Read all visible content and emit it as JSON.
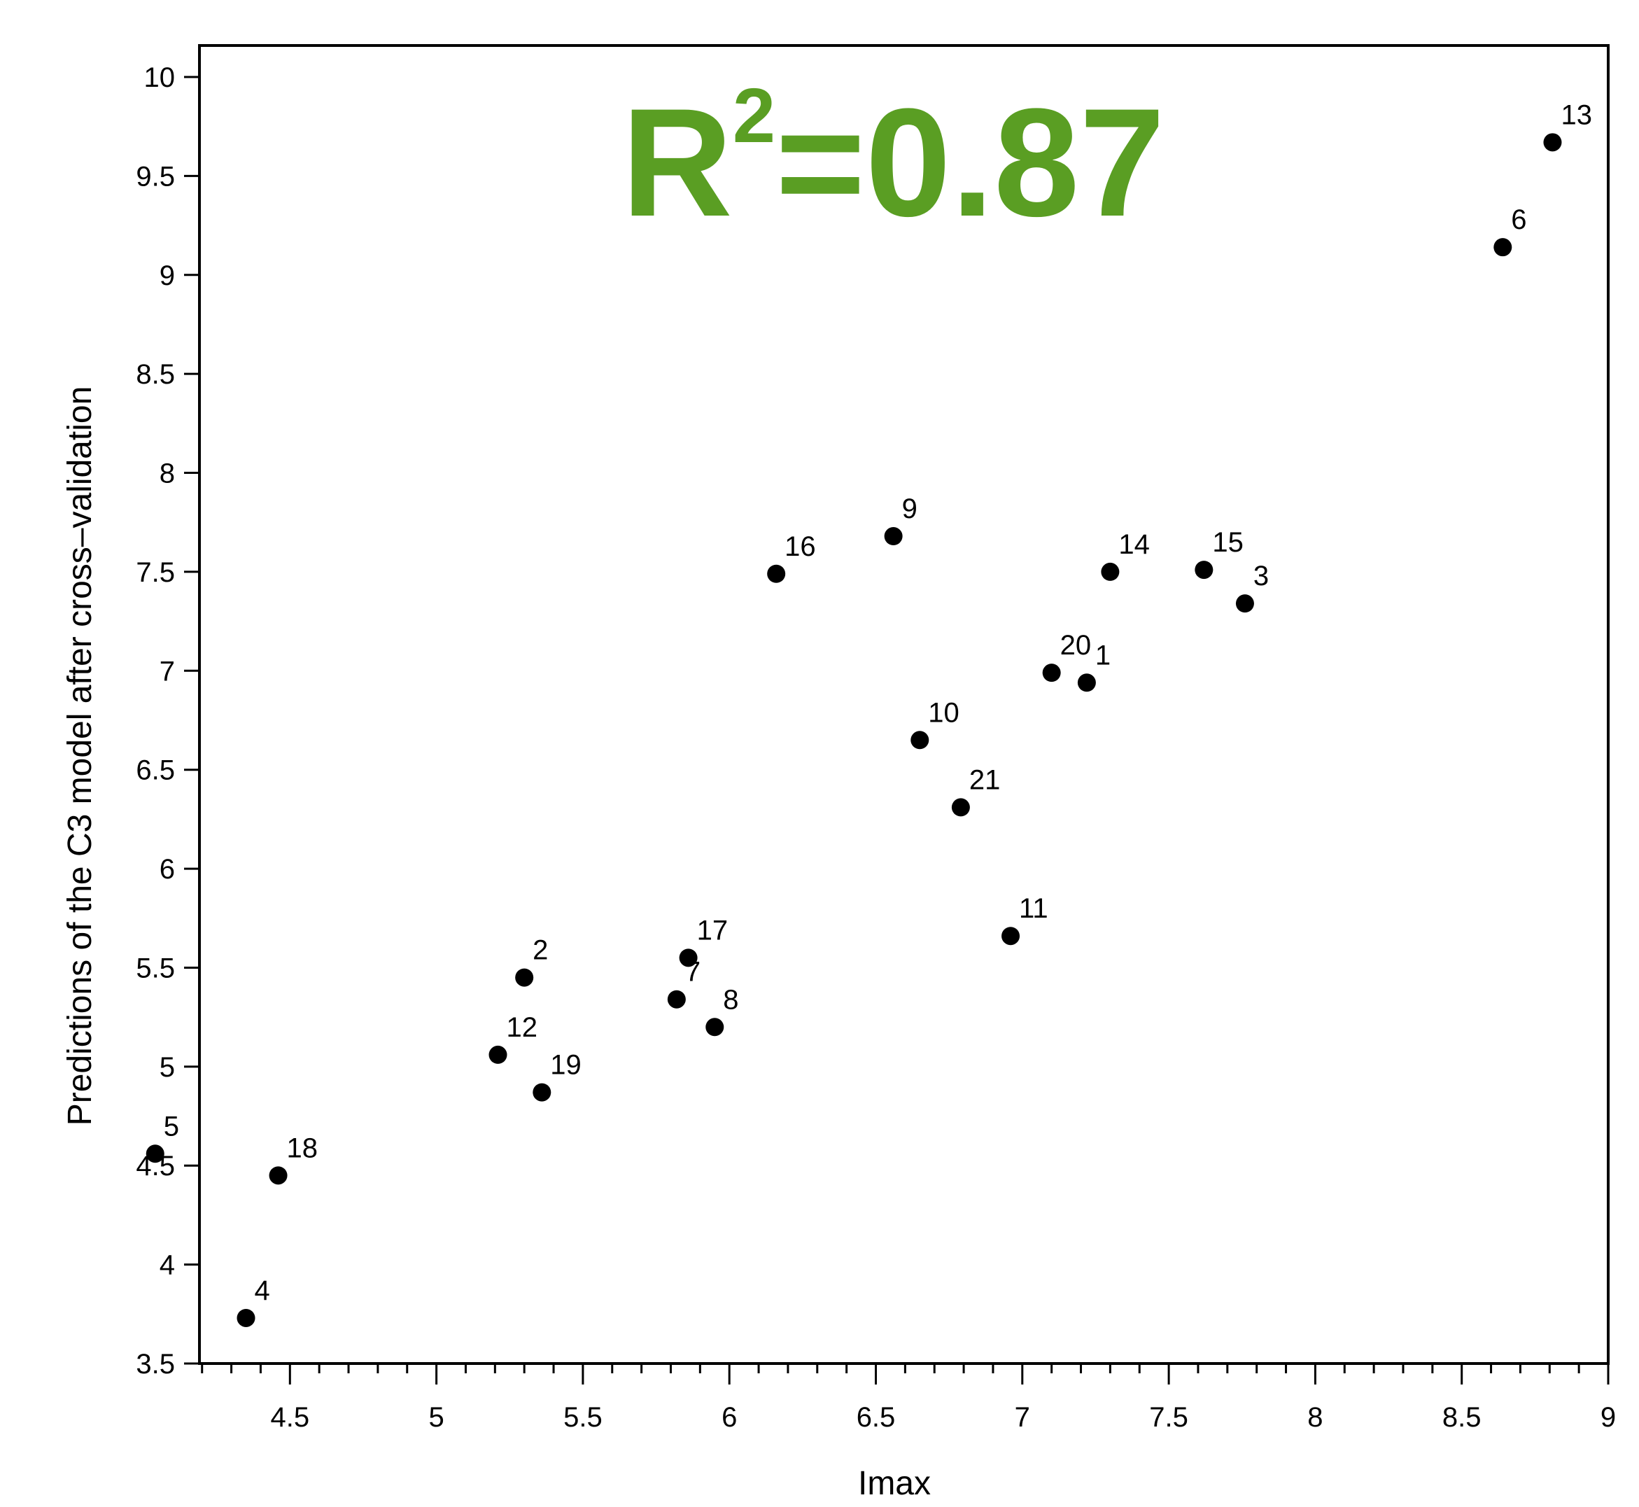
{
  "chart_data": {
    "type": "scatter",
    "xlabel": "Imax",
    "ylabel": "Predictions of the C3 model after cross–validation",
    "xlim": [
      4.0,
      9.0
    ],
    "ylim": [
      3.5,
      10.0
    ],
    "x_ticks": [
      "4.5",
      "5",
      "5.5",
      "6",
      "6.5",
      "7",
      "7.5",
      "8",
      "8.5",
      "9"
    ],
    "y_ticks": [
      "3.5",
      "4",
      "4.5",
      "5",
      "5.5",
      "6",
      "6.5",
      "7",
      "7.5",
      "8",
      "8.5",
      "9",
      "9.5",
      "10"
    ],
    "annotation": {
      "base": "R",
      "sup": "2",
      "rest": "=0.87",
      "color": "#5a9e23"
    },
    "grid": false,
    "points": [
      {
        "label": "1",
        "x": 7.22,
        "y": 6.94
      },
      {
        "label": "2",
        "x": 5.3,
        "y": 5.45
      },
      {
        "label": "3",
        "x": 7.76,
        "y": 7.34
      },
      {
        "label": "4",
        "x": 4.35,
        "y": 3.73
      },
      {
        "label": "5",
        "x": 4.04,
        "y": 4.56
      },
      {
        "label": "6",
        "x": 8.64,
        "y": 9.14
      },
      {
        "label": "7",
        "x": 5.82,
        "y": 5.34
      },
      {
        "label": "8",
        "x": 5.95,
        "y": 5.2
      },
      {
        "label": "9",
        "x": 6.56,
        "y": 7.68
      },
      {
        "label": "10",
        "x": 6.65,
        "y": 6.65
      },
      {
        "label": "11",
        "x": 6.96,
        "y": 5.66
      },
      {
        "label": "12",
        "x": 5.21,
        "y": 5.06
      },
      {
        "label": "13",
        "x": 8.81,
        "y": 9.67
      },
      {
        "label": "14",
        "x": 7.3,
        "y": 7.5
      },
      {
        "label": "15",
        "x": 7.62,
        "y": 7.51
      },
      {
        "label": "16",
        "x": 6.16,
        "y": 7.49
      },
      {
        "label": "17",
        "x": 5.86,
        "y": 5.55
      },
      {
        "label": "18",
        "x": 4.46,
        "y": 4.45
      },
      {
        "label": "19",
        "x": 5.36,
        "y": 4.87
      },
      {
        "label": "20",
        "x": 7.1,
        "y": 6.99
      },
      {
        "label": "21",
        "x": 6.79,
        "y": 6.31
      }
    ]
  }
}
